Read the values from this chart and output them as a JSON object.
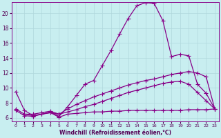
{
  "xlabel": "Windchill (Refroidissement éolien,°C)",
  "bg_color": "#c8eef0",
  "grid_color": "#b0d8dc",
  "line_color": "#880088",
  "xlim": [
    -0.5,
    23.5
  ],
  "ylim": [
    5.5,
    21.5
  ],
  "xticks": [
    0,
    1,
    2,
    3,
    4,
    5,
    6,
    7,
    8,
    9,
    10,
    11,
    12,
    13,
    14,
    15,
    16,
    17,
    18,
    19,
    20,
    21,
    22,
    23
  ],
  "yticks": [
    6,
    8,
    10,
    12,
    14,
    16,
    18,
    20
  ],
  "line1_x": [
    0,
    1,
    2,
    3,
    4,
    5,
    6,
    7,
    8,
    9,
    10,
    11,
    12,
    13,
    14,
    15,
    16,
    17,
    18,
    19,
    20,
    21,
    22,
    23
  ],
  "line1_y": [
    9.5,
    7.0,
    6.3,
    6.5,
    6.8,
    6.2,
    7.5,
    9.0,
    10.5,
    11.0,
    13.0,
    15.0,
    17.2,
    19.3,
    21.0,
    21.4,
    21.3,
    19.0,
    14.2,
    14.5,
    14.3,
    10.5,
    9.3,
    7.2
  ],
  "line2_x": [
    0,
    1,
    2,
    3,
    4,
    5,
    6,
    7,
    8,
    9,
    10,
    11,
    12,
    13,
    14,
    15,
    16,
    17,
    18,
    19,
    20,
    21,
    22,
    23
  ],
  "line2_y": [
    7.2,
    6.5,
    6.3,
    6.5,
    6.7,
    6.5,
    6.8,
    7.1,
    7.5,
    7.8,
    8.2,
    8.6,
    9.0,
    9.4,
    9.7,
    10.0,
    10.3,
    10.6,
    10.8,
    10.9,
    10.5,
    9.4,
    8.3,
    7.2
  ],
  "line3_x": [
    0,
    1,
    2,
    3,
    4,
    5,
    6,
    7,
    8,
    9,
    10,
    11,
    12,
    13,
    14,
    15,
    16,
    17,
    18,
    19,
    20,
    21,
    22,
    23
  ],
  "line3_y": [
    7.0,
    6.3,
    6.2,
    6.5,
    6.7,
    6.1,
    6.5,
    6.6,
    6.7,
    6.8,
    6.8,
    6.9,
    6.9,
    7.0,
    7.0,
    7.0,
    7.0,
    7.0,
    7.0,
    7.0,
    7.1,
    7.1,
    7.1,
    7.2
  ],
  "line4_x": [
    1,
    2,
    3,
    4,
    5,
    6,
    7,
    8,
    9,
    10,
    11,
    12,
    13,
    14,
    15,
    16,
    17,
    18,
    19,
    20,
    21,
    22,
    23
  ],
  "line4_y": [
    6.5,
    6.5,
    6.7,
    6.9,
    6.5,
    7.2,
    7.8,
    8.3,
    8.8,
    9.2,
    9.6,
    10.0,
    10.4,
    10.7,
    11.0,
    11.2,
    11.5,
    11.8,
    12.0,
    12.2,
    12.0,
    11.5,
    7.2
  ]
}
